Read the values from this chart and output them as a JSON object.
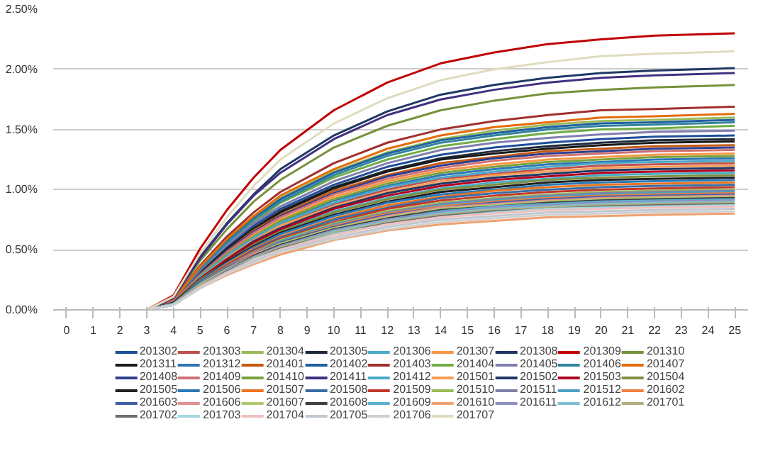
{
  "chart_data": {
    "type": "line",
    "x": [
      3,
      4,
      5,
      6,
      7,
      8,
      10,
      12,
      14,
      16,
      18,
      20,
      22,
      25
    ],
    "xlim": [
      -0.5,
      25.5
    ],
    "xticks": [
      0,
      1,
      2,
      3,
      4,
      5,
      6,
      7,
      8,
      9,
      10,
      11,
      12,
      13,
      14,
      15,
      16,
      17,
      18,
      19,
      20,
      21,
      22,
      23,
      24,
      25
    ],
    "ylim": [
      0,
      2.5
    ],
    "yticks": [
      {
        "value": 0,
        "label": "0.00%"
      },
      {
        "value": 0.5,
        "label": "0.50%"
      },
      {
        "value": 1,
        "label": "1.00%"
      },
      {
        "value": 1.5,
        "label": "1.50%"
      },
      {
        "value": 2,
        "label": "2.00%"
      },
      {
        "value": 2.5,
        "label": "2.50%"
      }
    ],
    "grid": "y",
    "legend": "bottom",
    "marker": "none",
    "line_style": "solid",
    "series": [
      {
        "name": "201302",
        "color": "#1f4e9a",
        "values": [
          0,
          0.07,
          0.32,
          0.52,
          0.7,
          0.84,
          1.04,
          1.19,
          1.29,
          1.35,
          1.39,
          1.42,
          1.44,
          1.45
        ]
      },
      {
        "name": "201303",
        "color": "#c0504d",
        "values": [
          0,
          0.06,
          0.27,
          0.44,
          0.59,
          0.71,
          0.88,
          1.0,
          1.09,
          1.13,
          1.17,
          1.2,
          1.21,
          1.22
        ]
      },
      {
        "name": "201304",
        "color": "#9bbb59",
        "values": [
          0,
          0.08,
          0.35,
          0.58,
          0.77,
          0.93,
          1.15,
          1.31,
          1.42,
          1.49,
          1.54,
          1.57,
          1.58,
          1.6
        ]
      },
      {
        "name": "201305",
        "color": "#1f2a3a",
        "values": [
          0,
          0.07,
          0.31,
          0.51,
          0.68,
          0.82,
          1.02,
          1.16,
          1.26,
          1.32,
          1.36,
          1.39,
          1.41,
          1.42
        ]
      },
      {
        "name": "201306",
        "color": "#4bacc6",
        "values": [
          0,
          0.06,
          0.25,
          0.41,
          0.55,
          0.66,
          0.82,
          0.93,
          1.01,
          1.06,
          1.09,
          1.12,
          1.13,
          1.14
        ]
      },
      {
        "name": "201307",
        "color": "#f79646",
        "values": [
          0,
          0.07,
          0.29,
          0.47,
          0.62,
          0.75,
          0.94,
          1.07,
          1.16,
          1.21,
          1.25,
          1.27,
          1.29,
          1.3
        ]
      },
      {
        "name": "201308",
        "color": "#1f3864",
        "values": [
          0,
          0.1,
          0.44,
          0.72,
          0.96,
          1.17,
          1.45,
          1.65,
          1.79,
          1.87,
          1.93,
          1.97,
          1.99,
          2.01
        ]
      },
      {
        "name": "201309",
        "color": "#c00000",
        "values": [
          0,
          0.12,
          0.51,
          0.83,
          1.1,
          1.33,
          1.66,
          1.89,
          2.05,
          2.14,
          2.21,
          2.25,
          2.28,
          2.3
        ]
      },
      {
        "name": "201310",
        "color": "#76923c",
        "values": [
          0,
          0.09,
          0.41,
          0.67,
          0.9,
          1.08,
          1.35,
          1.53,
          1.66,
          1.74,
          1.8,
          1.83,
          1.85,
          1.87
        ]
      },
      {
        "name": "201311",
        "color": "#1a1a1a",
        "values": [
          0,
          0.07,
          0.31,
          0.5,
          0.67,
          0.81,
          1.01,
          1.15,
          1.25,
          1.3,
          1.34,
          1.37,
          1.39,
          1.4
        ]
      },
      {
        "name": "201312",
        "color": "#2e75b6",
        "values": [
          0,
          0.06,
          0.28,
          0.45,
          0.6,
          0.73,
          0.91,
          1.03,
          1.12,
          1.17,
          1.21,
          1.23,
          1.25,
          1.26
        ]
      },
      {
        "name": "201401",
        "color": "#c65911",
        "values": [
          0,
          0.07,
          0.3,
          0.49,
          0.66,
          0.79,
          0.99,
          1.12,
          1.22,
          1.27,
          1.32,
          1.34,
          1.36,
          1.37
        ]
      },
      {
        "name": "201402",
        "color": "#1f5fa0",
        "values": [
          0,
          0.08,
          0.35,
          0.57,
          0.76,
          0.92,
          1.14,
          1.3,
          1.41,
          1.47,
          1.52,
          1.55,
          1.56,
          1.58
        ]
      },
      {
        "name": "201403",
        "color": "#a0302d",
        "values": [
          0,
          0.08,
          0.37,
          0.61,
          0.81,
          0.98,
          1.22,
          1.39,
          1.5,
          1.57,
          1.62,
          1.66,
          1.67,
          1.69
        ]
      },
      {
        "name": "201404",
        "color": "#70ad47",
        "values": [
          0,
          0.08,
          0.34,
          0.55,
          0.73,
          0.89,
          1.1,
          1.25,
          1.36,
          1.42,
          1.47,
          1.5,
          1.51,
          1.53
        ]
      },
      {
        "name": "201405",
        "color": "#7f7fb0",
        "values": [
          0,
          0.07,
          0.33,
          0.54,
          0.72,
          0.86,
          1.07,
          1.22,
          1.33,
          1.39,
          1.43,
          1.46,
          1.48,
          1.49
        ]
      },
      {
        "name": "201406",
        "color": "#31859c",
        "values": [
          0,
          0.08,
          0.34,
          0.56,
          0.75,
          0.9,
          1.12,
          1.28,
          1.39,
          1.45,
          1.5,
          1.53,
          1.54,
          1.56
        ]
      },
      {
        "name": "201407",
        "color": "#e46c0a",
        "values": [
          0,
          0.08,
          0.36,
          0.59,
          0.78,
          0.95,
          1.17,
          1.34,
          1.45,
          1.52,
          1.56,
          1.6,
          1.61,
          1.63
        ]
      },
      {
        "name": "201408",
        "color": "#2f3f8f",
        "values": [
          0,
          0.07,
          0.3,
          0.49,
          0.65,
          0.78,
          0.97,
          1.11,
          1.2,
          1.26,
          1.3,
          1.32,
          1.34,
          1.35
        ]
      },
      {
        "name": "201409",
        "color": "#d07070",
        "values": [
          0,
          0.07,
          0.29,
          0.48,
          0.64,
          0.77,
          0.96,
          1.09,
          1.18,
          1.24,
          1.28,
          1.3,
          1.32,
          1.33
        ]
      },
      {
        "name": "201410",
        "color": "#7aa23b",
        "values": [
          0,
          0.06,
          0.28,
          0.46,
          0.61,
          0.74,
          0.92,
          1.05,
          1.14,
          1.19,
          1.23,
          1.25,
          1.27,
          1.28
        ]
      },
      {
        "name": "201411",
        "color": "#403080",
        "values": [
          0,
          0.1,
          0.43,
          0.71,
          0.95,
          1.14,
          1.42,
          1.62,
          1.75,
          1.83,
          1.89,
          1.93,
          1.95,
          1.97
        ]
      },
      {
        "name": "201412",
        "color": "#4aa8c8",
        "values": [
          0,
          0.06,
          0.27,
          0.45,
          0.6,
          0.72,
          0.89,
          1.02,
          1.1,
          1.15,
          1.19,
          1.22,
          1.23,
          1.24
        ]
      },
      {
        "name": "201501",
        "color": "#f59d56",
        "values": [
          0,
          0.06,
          0.26,
          0.43,
          0.58,
          0.7,
          0.86,
          0.98,
          1.07,
          1.12,
          1.15,
          1.18,
          1.19,
          1.2
        ]
      },
      {
        "name": "201502",
        "color": "#203864",
        "values": [
          0,
          0.06,
          0.26,
          0.42,
          0.57,
          0.68,
          0.85,
          0.97,
          1.05,
          1.1,
          1.13,
          1.16,
          1.17,
          1.18
        ]
      },
      {
        "name": "201503",
        "color": "#b00020",
        "values": [
          0,
          0.06,
          0.26,
          0.42,
          0.56,
          0.67,
          0.84,
          0.95,
          1.03,
          1.08,
          1.11,
          1.14,
          1.15,
          1.16
        ]
      },
      {
        "name": "201504",
        "color": "#7f8f3f",
        "values": [
          0,
          0.06,
          0.25,
          0.4,
          0.54,
          0.65,
          0.81,
          0.92,
          1.0,
          1.04,
          1.08,
          1.1,
          1.11,
          1.12
        ]
      },
      {
        "name": "201505",
        "color": "#202020",
        "values": [
          0,
          0.06,
          0.24,
          0.4,
          0.53,
          0.64,
          0.79,
          0.9,
          0.98,
          1.02,
          1.06,
          1.08,
          1.09,
          1.1
        ]
      },
      {
        "name": "201506",
        "color": "#2a7ab8",
        "values": [
          0,
          0.05,
          0.24,
          0.39,
          0.52,
          0.63,
          0.78,
          0.89,
          0.96,
          1.0,
          1.04,
          1.06,
          1.07,
          1.08
        ]
      },
      {
        "name": "201507",
        "color": "#ea7420",
        "values": [
          0,
          0.05,
          0.23,
          0.38,
          0.51,
          0.61,
          0.76,
          0.87,
          0.94,
          0.99,
          1.02,
          1.04,
          1.05,
          1.06
        ]
      },
      {
        "name": "201508",
        "color": "#3a6ea5",
        "values": [
          0,
          0.05,
          0.23,
          0.37,
          0.5,
          0.6,
          0.75,
          0.85,
          0.93,
          0.97,
          1.0,
          1.02,
          1.03,
          1.04
        ]
      },
      {
        "name": "201509",
        "color": "#c0392b",
        "values": [
          0,
          0.05,
          0.22,
          0.37,
          0.49,
          0.59,
          0.73,
          0.84,
          0.91,
          0.95,
          0.98,
          1.0,
          1.01,
          1.02
        ]
      },
      {
        "name": "201510",
        "color": "#9bbb59",
        "values": [
          0,
          0.05,
          0.22,
          0.36,
          0.48,
          0.58,
          0.72,
          0.82,
          0.89,
          0.93,
          0.96,
          0.98,
          0.99,
          1.0
        ]
      },
      {
        "name": "201511",
        "color": "#8080a8",
        "values": [
          0,
          0.05,
          0.22,
          0.36,
          0.48,
          0.57,
          0.71,
          0.81,
          0.88,
          0.92,
          0.95,
          0.97,
          0.98,
          0.99
        ]
      },
      {
        "name": "201512",
        "color": "#4aa0c0",
        "values": [
          0,
          0.05,
          0.22,
          0.35,
          0.47,
          0.57,
          0.71,
          0.8,
          0.87,
          0.91,
          0.94,
          0.96,
          0.97,
          0.98
        ]
      },
      {
        "name": "201602",
        "color": "#f08040",
        "values": [
          0,
          0.05,
          0.21,
          0.35,
          0.47,
          0.56,
          0.7,
          0.8,
          0.86,
          0.9,
          0.93,
          0.95,
          0.96,
          0.97
        ]
      },
      {
        "name": "201603",
        "color": "#4060a8",
        "values": [
          0,
          0.05,
          0.21,
          0.35,
          0.46,
          0.56,
          0.69,
          0.79,
          0.85,
          0.89,
          0.92,
          0.94,
          0.95,
          0.96
        ]
      },
      {
        "name": "201606",
        "color": "#e09090",
        "values": [
          0,
          0.05,
          0.21,
          0.34,
          0.46,
          0.55,
          0.68,
          0.78,
          0.85,
          0.88,
          0.91,
          0.93,
          0.94,
          0.95
        ]
      },
      {
        "name": "201607",
        "color": "#b0c870",
        "values": [
          0,
          0.05,
          0.21,
          0.34,
          0.45,
          0.55,
          0.68,
          0.77,
          0.84,
          0.87,
          0.9,
          0.92,
          0.93,
          0.94
        ]
      },
      {
        "name": "201608",
        "color": "#404040",
        "values": [
          0,
          0.05,
          0.2,
          0.33,
          0.45,
          0.54,
          0.67,
          0.76,
          0.83,
          0.86,
          0.89,
          0.91,
          0.92,
          0.93
        ]
      },
      {
        "name": "201609",
        "color": "#5ab0d0",
        "values": [
          0,
          0.05,
          0.2,
          0.33,
          0.44,
          0.53,
          0.66,
          0.75,
          0.82,
          0.86,
          0.88,
          0.9,
          0.91,
          0.92
        ]
      },
      {
        "name": "201610",
        "color": "#f0a070",
        "values": [
          0,
          0.04,
          0.18,
          0.29,
          0.38,
          0.46,
          0.58,
          0.66,
          0.71,
          0.74,
          0.77,
          0.78,
          0.79,
          0.8
        ]
      },
      {
        "name": "201611",
        "color": "#9090c0",
        "values": [
          0,
          0.05,
          0.2,
          0.33,
          0.44,
          0.53,
          0.66,
          0.75,
          0.81,
          0.85,
          0.87,
          0.89,
          0.9,
          0.91
        ]
      },
      {
        "name": "201612",
        "color": "#80c0d0",
        "values": [
          0,
          0.05,
          0.2,
          0.32,
          0.43,
          0.52,
          0.65,
          0.74,
          0.8,
          0.84,
          0.86,
          0.88,
          0.89,
          0.9
        ]
      },
      {
        "name": "201701",
        "color": "#b0b080",
        "values": [
          0,
          0.04,
          0.2,
          0.32,
          0.43,
          0.52,
          0.64,
          0.73,
          0.79,
          0.83,
          0.85,
          0.87,
          0.88,
          0.89
        ]
      },
      {
        "name": "201702",
        "color": "#707070",
        "values": [
          0,
          0.04,
          0.19,
          0.32,
          0.42,
          0.51,
          0.63,
          0.72,
          0.78,
          0.82,
          0.84,
          0.86,
          0.87,
          0.88
        ]
      },
      {
        "name": "201703",
        "color": "#a0d8e0",
        "values": [
          0,
          0.04,
          0.19,
          0.31,
          0.42,
          0.5,
          0.63,
          0.71,
          0.77,
          0.81,
          0.84,
          0.85,
          0.86,
          0.87
        ]
      },
      {
        "name": "201704",
        "color": "#f0c0c0",
        "values": [
          0,
          0.04,
          0.19,
          0.31,
          0.41,
          0.5,
          0.62,
          0.71,
          0.77,
          0.8,
          0.83,
          0.84,
          0.85,
          0.86
        ]
      },
      {
        "name": "201705",
        "color": "#c0c8d0",
        "values": [
          0,
          0.04,
          0.18,
          0.3,
          0.4,
          0.49,
          0.6,
          0.69,
          0.75,
          0.78,
          0.81,
          0.82,
          0.83,
          0.84
        ]
      },
      {
        "name": "201706",
        "color": "#d0d0d0",
        "values": [
          0,
          0.04,
          0.18,
          0.3,
          0.39,
          0.48,
          0.59,
          0.67,
          0.73,
          0.76,
          0.79,
          0.8,
          0.81,
          0.82
        ]
      },
      {
        "name": "201707",
        "color": "#e0dcc0",
        "values": [
          0,
          0.11,
          0.47,
          0.77,
          1.03,
          1.25,
          1.55,
          1.76,
          1.91,
          2.0,
          2.06,
          2.11,
          2.13,
          2.15
        ]
      }
    ]
  }
}
